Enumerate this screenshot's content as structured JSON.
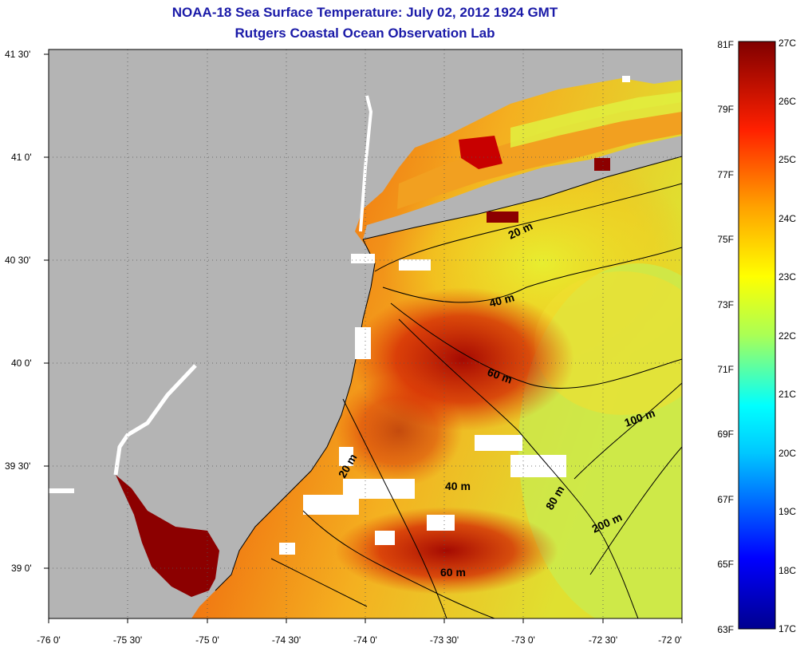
{
  "title": "NOAA-18 Sea Surface Temperature:  July 02, 2012 1924 GMT",
  "subtitle": "Rutgers Coastal Ocean Observation Lab",
  "colors": {
    "land": "#b4b4b4",
    "cloud_mask": "#ffffff",
    "title_text": "#1a1aa8"
  },
  "map": {
    "lat_ticks": [
      "41 30'",
      "41 0'",
      "40 30'",
      "40 0'",
      "39 30'",
      "39 0'"
    ],
    "lon_ticks": [
      "-76 0'",
      "-75 30'",
      "-75 0'",
      "-74 30'",
      "-74 0'",
      "-73 30'",
      "-73 0'",
      "-72 30'",
      "-72 0'"
    ],
    "lat_range": [
      38.75,
      41.5
    ],
    "lon_range": [
      -76.0,
      -72.0
    ],
    "isobath_labels": [
      {
        "text": "20 m",
        "lat": 40.62,
        "lon": -73.17
      },
      {
        "text": "40 m",
        "lat": 40.28,
        "lon": -73.15
      },
      {
        "text": "60 m",
        "lat": 39.93,
        "lon": -73.0
      },
      {
        "text": "100 m",
        "lat": 39.72,
        "lon": -72.28
      },
      {
        "text": "20 m",
        "lat": 39.45,
        "lon": -74.07
      },
      {
        "text": "40 m",
        "lat": 39.35,
        "lon": -73.48
      },
      {
        "text": "80 m",
        "lat": 39.25,
        "lon": -72.95
      },
      {
        "text": "200 m",
        "lat": 39.13,
        "lon": -72.4
      },
      {
        "text": "60 m",
        "lat": 38.97,
        "lon": -73.39
      }
    ]
  },
  "colorbar": {
    "f_labels": [
      "81F",
      "79F",
      "77F",
      "75F",
      "73F",
      "71F",
      "69F",
      "67F",
      "65F",
      "63F"
    ],
    "c_labels": [
      "27C",
      "26C",
      "25C",
      "24C",
      "23C",
      "22C",
      "21C",
      "20C",
      "19C",
      "18C",
      "17C"
    ],
    "range_c": [
      17,
      27
    ]
  }
}
